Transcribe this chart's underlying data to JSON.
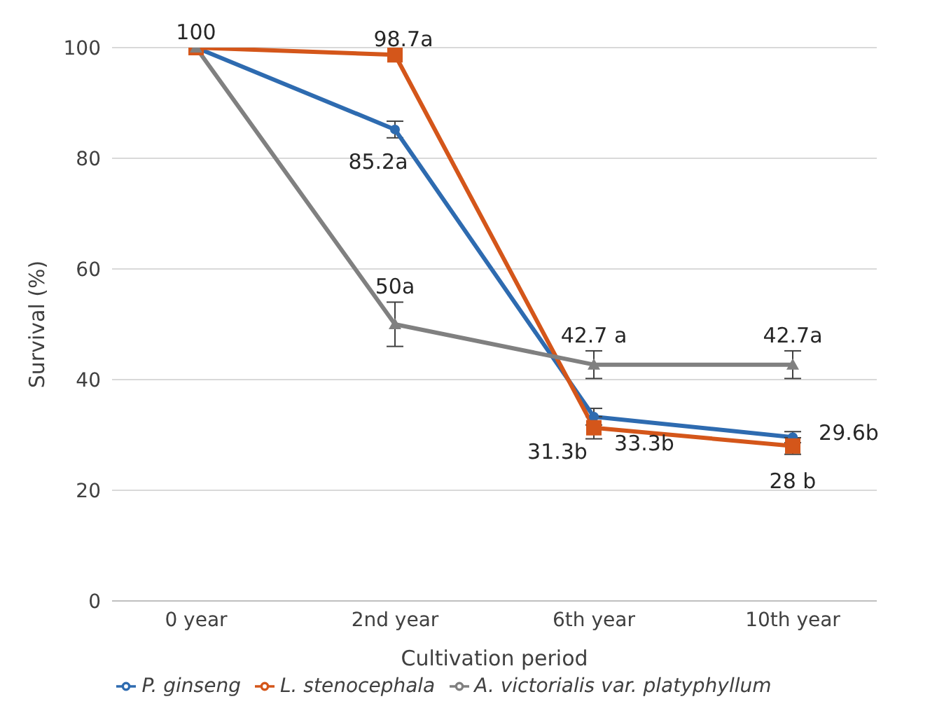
{
  "chart_data": {
    "type": "line",
    "xlabel": "Cultivation period",
    "ylabel": "Survival (%)",
    "categories": [
      "0 year",
      "2nd year",
      "6th year",
      "10th year"
    ],
    "ylim": [
      0,
      100
    ],
    "yticks": [
      0,
      20,
      40,
      60,
      80,
      100
    ],
    "grid": "y",
    "legend": "bottom",
    "series": [
      {
        "name": "P. ginseng",
        "color": "#2e6bb0",
        "marker": "circle",
        "values": [
          100,
          85.2,
          33.3,
          29.6
        ],
        "errors": [
          null,
          1.5,
          1.5,
          1
        ],
        "value_labels": [
          "100",
          "85.2a",
          "33.3b",
          "29.6b"
        ]
      },
      {
        "name": "L. stenocephala",
        "color": "#d4561a",
        "marker": "square",
        "values": [
          100,
          98.7,
          31.3,
          28
        ],
        "errors": [
          null,
          null,
          2,
          1.5
        ],
        "value_labels": [
          null,
          "98.7a",
          "31.3b",
          "28 b"
        ]
      },
      {
        "name": "A. victorialis var. platyphyllum",
        "color": "#808080",
        "marker": "triangle",
        "values": [
          100,
          50,
          42.7,
          42.7
        ],
        "errors": [
          null,
          4,
          2.5,
          2.5
        ],
        "value_labels": [
          null,
          "50a",
          "42.7 a",
          "42.7a"
        ]
      }
    ]
  }
}
